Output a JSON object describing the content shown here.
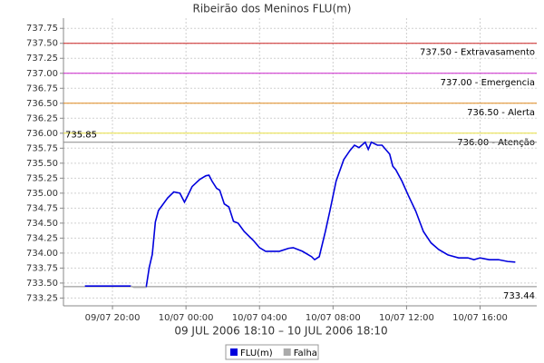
{
  "chart_data": {
    "type": "line",
    "title": "Ribeirão dos Meninos FLU(m)",
    "xlabel": "09 JUL 2006 18:10 – 10 JUL 2006 18:10",
    "x": [
      "09/07 18:30",
      "09/07 21:00",
      "09/07 21:10",
      "09/07 21:50",
      "09/07 22:00",
      "09/07 22:10",
      "09/07 22:20",
      "09/07 22:30",
      "09/07 23:00",
      "09/07 23:20",
      "09/07 23:40",
      "09/07 23:55",
      "10/07 00:05",
      "10/07 00:20",
      "10/07 00:45",
      "10/07 01:05",
      "10/07 01:15",
      "10/07 01:25",
      "10/07 01:40",
      "10/07 01:50",
      "10/07 02:05",
      "10/07 02:20",
      "10/07 02:35",
      "10/07 02:50",
      "10/07 03:10",
      "10/07 03:40",
      "10/07 04:00",
      "10/07 04:20",
      "10/07 05:05",
      "10/07 05:35",
      "10/07 05:50",
      "10/07 06:20",
      "10/07 06:50",
      "10/07 07:00",
      "10/07 07:15",
      "10/07 07:35",
      "10/07 07:50",
      "10/07 08:10",
      "10/07 08:35",
      "10/07 08:55",
      "10/07 09:10",
      "10/07 09:25",
      "10/07 09:45",
      "10/07 09:55",
      "10/07 10:05",
      "10/07 10:25",
      "10/07 10:40",
      "10/07 11:05",
      "10/07 11:15",
      "10/07 11:25",
      "10/07 11:45",
      "10/07 12:05",
      "10/07 12:30",
      "10/07 12:55",
      "10/07 13:20",
      "10/07 13:45",
      "10/07 14:15",
      "10/07 14:50",
      "10/07 15:20",
      "10/07 15:40",
      "10/07 16:00",
      "10/07 16:30",
      "10/07 17:00",
      "10/07 17:30",
      "10/07 17:55"
    ],
    "series": [
      {
        "name": "FLU(m)",
        "color": "#0000dd",
        "values": [
          733.45,
          733.45,
          null,
          733.43,
          733.76,
          733.98,
          734.52,
          734.71,
          734.92,
          735.02,
          735.0,
          734.85,
          734.95,
          735.11,
          735.23,
          735.29,
          735.3,
          735.2,
          735.08,
          735.05,
          734.82,
          734.77,
          734.53,
          734.5,
          734.36,
          734.21,
          734.09,
          734.03,
          734.03,
          734.08,
          734.09,
          734.03,
          733.94,
          733.89,
          733.94,
          734.36,
          734.71,
          735.2,
          735.56,
          735.71,
          735.8,
          735.76,
          735.85,
          735.73,
          735.85,
          735.8,
          735.8,
          735.65,
          735.45,
          735.39,
          735.2,
          734.97,
          734.7,
          734.36,
          734.17,
          734.06,
          733.97,
          733.92,
          733.92,
          733.89,
          733.92,
          733.89,
          733.89,
          733.86,
          733.85
        ]
      },
      {
        "name": "Falha",
        "color": "#aaaaaa",
        "values": [
          null,
          733.45,
          733.43,
          733.43,
          null,
          null,
          null,
          null,
          null,
          null,
          null,
          null,
          null,
          null,
          null,
          null,
          null,
          null,
          null,
          null,
          null,
          null,
          null,
          null,
          null,
          null,
          null,
          null,
          null,
          null,
          null,
          null,
          null,
          null,
          null,
          null,
          null,
          null,
          null,
          null,
          null,
          null,
          null,
          null,
          null,
          null,
          null,
          null,
          null,
          null,
          null,
          null,
          null,
          null,
          null,
          null,
          null,
          null,
          null,
          null,
          null,
          null,
          null,
          null,
          null
        ]
      }
    ],
    "reference_lines": [
      {
        "value": 737.5,
        "label": "737.50 - Extravasamento",
        "color": "#cc2222"
      },
      {
        "value": 737.0,
        "label": "737.00 - Emergencia",
        "color": "#cc22cc"
      },
      {
        "value": 736.5,
        "label": "736.50 - Alerta",
        "color": "#e08a1e"
      },
      {
        "value": 736.0,
        "label": "736.00 - Atenção",
        "color": "#e8e040"
      }
    ],
    "max_line": 735.85,
    "min_line": 733.44,
    "marker_line_color": "#888888",
    "xlim": [
      "09/07 17:20",
      "10/07 19:05"
    ],
    "xticks": [
      "09/07 20:00",
      "10/07 00:00",
      "10/07 04:00",
      "10/07 08:00",
      "10/07 12:00",
      "10/07 16:00"
    ],
    "ylim": [
      733.12,
      737.92
    ],
    "yticks": [
      {
        "value": 733.25,
        "label": "733.25"
      },
      {
        "value": 733.5,
        "label": "733.50"
      },
      {
        "value": 733.75,
        "label": "733.75"
      },
      {
        "value": 734,
        "label": "734.00"
      },
      {
        "value": 734.25,
        "label": "734.25"
      },
      {
        "value": 734.5,
        "label": "734.50"
      },
      {
        "value": 734.75,
        "label": "734.75"
      },
      {
        "value": 735,
        "label": "735.00"
      },
      {
        "value": 735.25,
        "label": "735.25"
      },
      {
        "value": 735.5,
        "label": "735.50"
      },
      {
        "value": 735.75,
        "label": "735.75"
      },
      {
        "value": 736,
        "label": "736.00"
      },
      {
        "value": 736.25,
        "label": "736.25"
      },
      {
        "value": 736.5,
        "label": "736.50"
      },
      {
        "value": 736.75,
        "label": "736.75"
      },
      {
        "value": 737,
        "label": "737.00"
      },
      {
        "value": 737.25,
        "label": "737.25"
      },
      {
        "value": 737.5,
        "label": "737.50"
      },
      {
        "value": 737.75,
        "label": "737.75"
      }
    ],
    "grid": true
  }
}
